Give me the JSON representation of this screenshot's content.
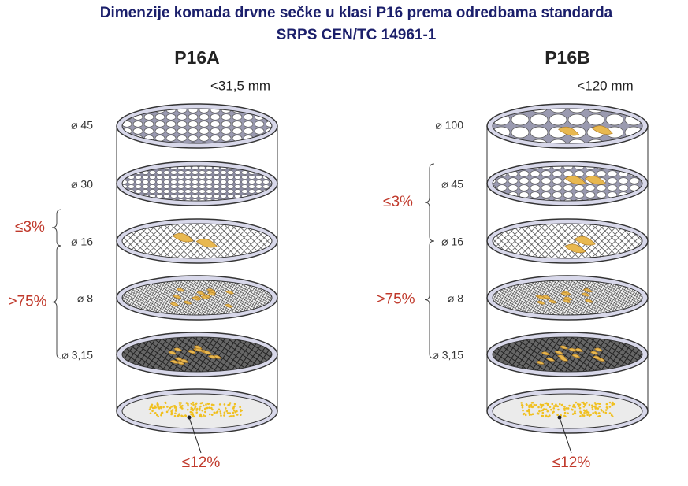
{
  "title": {
    "lines": [
      "Dimenzije komada drvne sečke u klasi P16 prema odredbama standarda",
      "SRPS CEN/TC 14961-1"
    ]
  },
  "panels": [
    {
      "label": "P16A",
      "size": "<31,5 mm",
      "sieves": [
        "⌀ 45",
        "⌀ 30",
        "⌀ 16",
        "⌀ 8",
        "⌀ 3,15"
      ],
      "coarse_label": "≤3%",
      "main_label": ">75%",
      "fines_label": "≤12%"
    },
    {
      "label": "P16B",
      "size": "<120 mm",
      "sieves": [
        "⌀ 100",
        "⌀ 45",
        "⌀ 16",
        "⌀ 8",
        "⌀ 3,15"
      ],
      "coarse_label": "≤3%",
      "main_label": ">75%",
      "fines_label": "≤12%"
    }
  ]
}
